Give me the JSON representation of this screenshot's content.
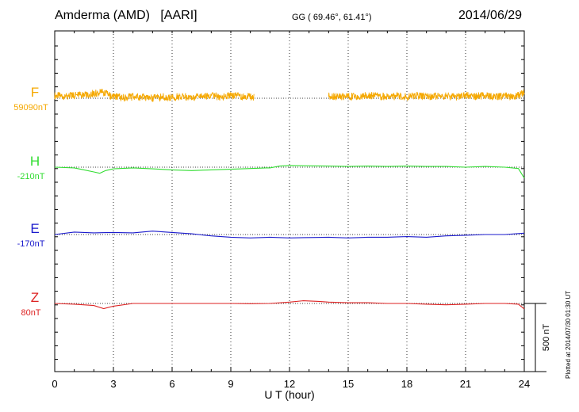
{
  "header": {
    "station": "Amderma (AMD)",
    "network": "[AARI]",
    "coordinates": "GG ( 69.46°,  61.41°)",
    "date": "2014/06/29"
  },
  "footer_note": "Plotted at 2014/07/30 01:30 UT",
  "chart_data": {
    "type": "line",
    "xlabel": "U T (hour)",
    "xlim": [
      0,
      24
    ],
    "xticks": [
      "0",
      "3",
      "6",
      "9",
      "12",
      "15",
      "18",
      "21",
      "24"
    ],
    "scale_bar_label": "500 nT",
    "series": [
      {
        "name": "F",
        "baseline_label": "59090nT",
        "color": "#f5a800",
        "gaps": [
          [
            10.2,
            14.0
          ]
        ],
        "points": [
          [
            0,
            20
          ],
          [
            0.5,
            15
          ],
          [
            1,
            22
          ],
          [
            1.5,
            25
          ],
          [
            2,
            35
          ],
          [
            2.5,
            45
          ],
          [
            2.8,
            20
          ],
          [
            3,
            15
          ],
          [
            3.5,
            5
          ],
          [
            4,
            10
          ],
          [
            4.5,
            8
          ],
          [
            5,
            0
          ],
          [
            5.5,
            10
          ],
          [
            6,
            5
          ],
          [
            6.5,
            15
          ],
          [
            7,
            10
          ],
          [
            7.5,
            10
          ],
          [
            8,
            15
          ],
          [
            8.5,
            10
          ],
          [
            9,
            20
          ],
          [
            9.5,
            15
          ],
          [
            10.2,
            10
          ],
          [
            14,
            20
          ],
          [
            14.5,
            10
          ],
          [
            15,
            15
          ],
          [
            15.5,
            10
          ],
          [
            16,
            20
          ],
          [
            16.5,
            15
          ],
          [
            17,
            10
          ],
          [
            17.5,
            15
          ],
          [
            18,
            10
          ],
          [
            18.5,
            20
          ],
          [
            19,
            10
          ],
          [
            19.5,
            15
          ],
          [
            20,
            15
          ],
          [
            20.5,
            10
          ],
          [
            21,
            20
          ],
          [
            21.5,
            15
          ],
          [
            22,
            20
          ],
          [
            22.5,
            10
          ],
          [
            23,
            15
          ],
          [
            23.5,
            10
          ],
          [
            24,
            40
          ]
        ]
      },
      {
        "name": "H",
        "baseline_label": "-210nT",
        "color": "#33dd33",
        "points": [
          [
            0,
            0
          ],
          [
            1,
            -5
          ],
          [
            1.5,
            -20
          ],
          [
            2,
            -35
          ],
          [
            2.3,
            -45
          ],
          [
            2.6,
            -25
          ],
          [
            3,
            -12
          ],
          [
            4,
            -5
          ],
          [
            5,
            -12
          ],
          [
            6,
            -20
          ],
          [
            7,
            -25
          ],
          [
            8,
            -20
          ],
          [
            9,
            -15
          ],
          [
            10,
            -10
          ],
          [
            10.8,
            -5
          ],
          [
            11,
            -5
          ],
          [
            11.5,
            8
          ],
          [
            12,
            12
          ],
          [
            13,
            10
          ],
          [
            14,
            8
          ],
          [
            15,
            5
          ],
          [
            16,
            8
          ],
          [
            17,
            5
          ],
          [
            18,
            8
          ],
          [
            19,
            5
          ],
          [
            20,
            5
          ],
          [
            21,
            0
          ],
          [
            22,
            5
          ],
          [
            23,
            0
          ],
          [
            23.7,
            -10
          ],
          [
            24,
            -80
          ]
        ]
      },
      {
        "name": "E",
        "baseline_label": "-170nT",
        "color": "#1a1acc",
        "points": [
          [
            0,
            0
          ],
          [
            1,
            18
          ],
          [
            2,
            12
          ],
          [
            3,
            15
          ],
          [
            4,
            12
          ],
          [
            5,
            25
          ],
          [
            6,
            15
          ],
          [
            7,
            5
          ],
          [
            8,
            -10
          ],
          [
            9,
            -20
          ],
          [
            10,
            -25
          ],
          [
            11,
            -20
          ],
          [
            12,
            -25
          ],
          [
            13,
            -22
          ],
          [
            14,
            -20
          ],
          [
            15,
            -25
          ],
          [
            16,
            -20
          ],
          [
            17,
            -20
          ],
          [
            18,
            -15
          ],
          [
            19,
            -20
          ],
          [
            20,
            -10
          ],
          [
            21,
            -5
          ],
          [
            22,
            0
          ],
          [
            23,
            0
          ],
          [
            24,
            10
          ]
        ]
      },
      {
        "name": "Z",
        "baseline_label": "80nT",
        "color": "#dd2222",
        "points": [
          [
            0,
            0
          ],
          [
            1,
            -5
          ],
          [
            2,
            -15
          ],
          [
            2.5,
            -38
          ],
          [
            3,
            -20
          ],
          [
            4,
            0
          ],
          [
            5,
            0
          ],
          [
            6,
            0
          ],
          [
            7,
            0
          ],
          [
            8,
            0
          ],
          [
            9,
            0
          ],
          [
            10,
            -2
          ],
          [
            11,
            0
          ],
          [
            12,
            10
          ],
          [
            12.7,
            20
          ],
          [
            13.5,
            15
          ],
          [
            14,
            10
          ],
          [
            15,
            5
          ],
          [
            16,
            5
          ],
          [
            17,
            0
          ],
          [
            18,
            0
          ],
          [
            19,
            -5
          ],
          [
            20,
            -10
          ],
          [
            21,
            -5
          ],
          [
            22,
            0
          ],
          [
            23,
            0
          ],
          [
            23.7,
            -5
          ],
          [
            24,
            -40
          ]
        ]
      }
    ]
  }
}
